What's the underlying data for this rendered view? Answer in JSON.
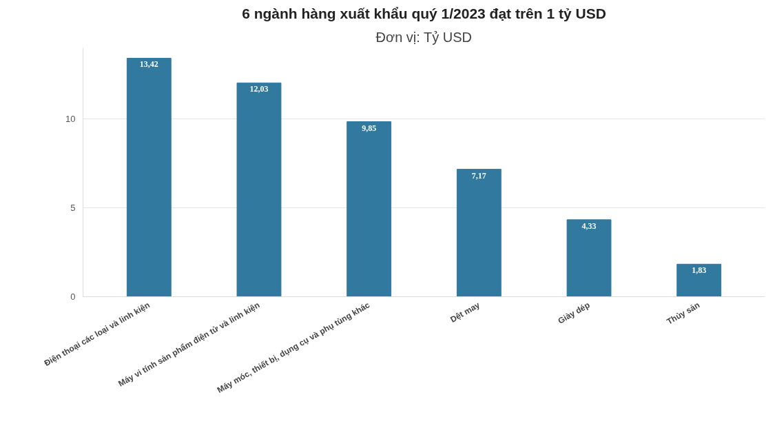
{
  "chart_data": {
    "type": "bar",
    "title": "6 ngành hàng xuất khẩu quý 1/2023 đạt trên 1 tỷ USD",
    "subtitle": "Đơn vị: Tỷ USD",
    "categories": [
      "Điện thoại các loại và linh kiện",
      "Máy vi tính sản phẩm điện tử và linh kiện",
      "Máy móc, thiết bị, dụng cụ và phụ tùng khác",
      "Dệt may",
      "Giày dép",
      "Thủy sản"
    ],
    "values": [
      13.42,
      12.03,
      9.85,
      7.17,
      4.33,
      1.83
    ],
    "value_labels": [
      "13,42",
      "12,03",
      "9,85",
      "7,17",
      "4,33",
      "1,83"
    ],
    "color": "#31799f",
    "ylim": [
      0,
      14
    ],
    "yticks": [
      0,
      5,
      10
    ],
    "grid": "y"
  }
}
